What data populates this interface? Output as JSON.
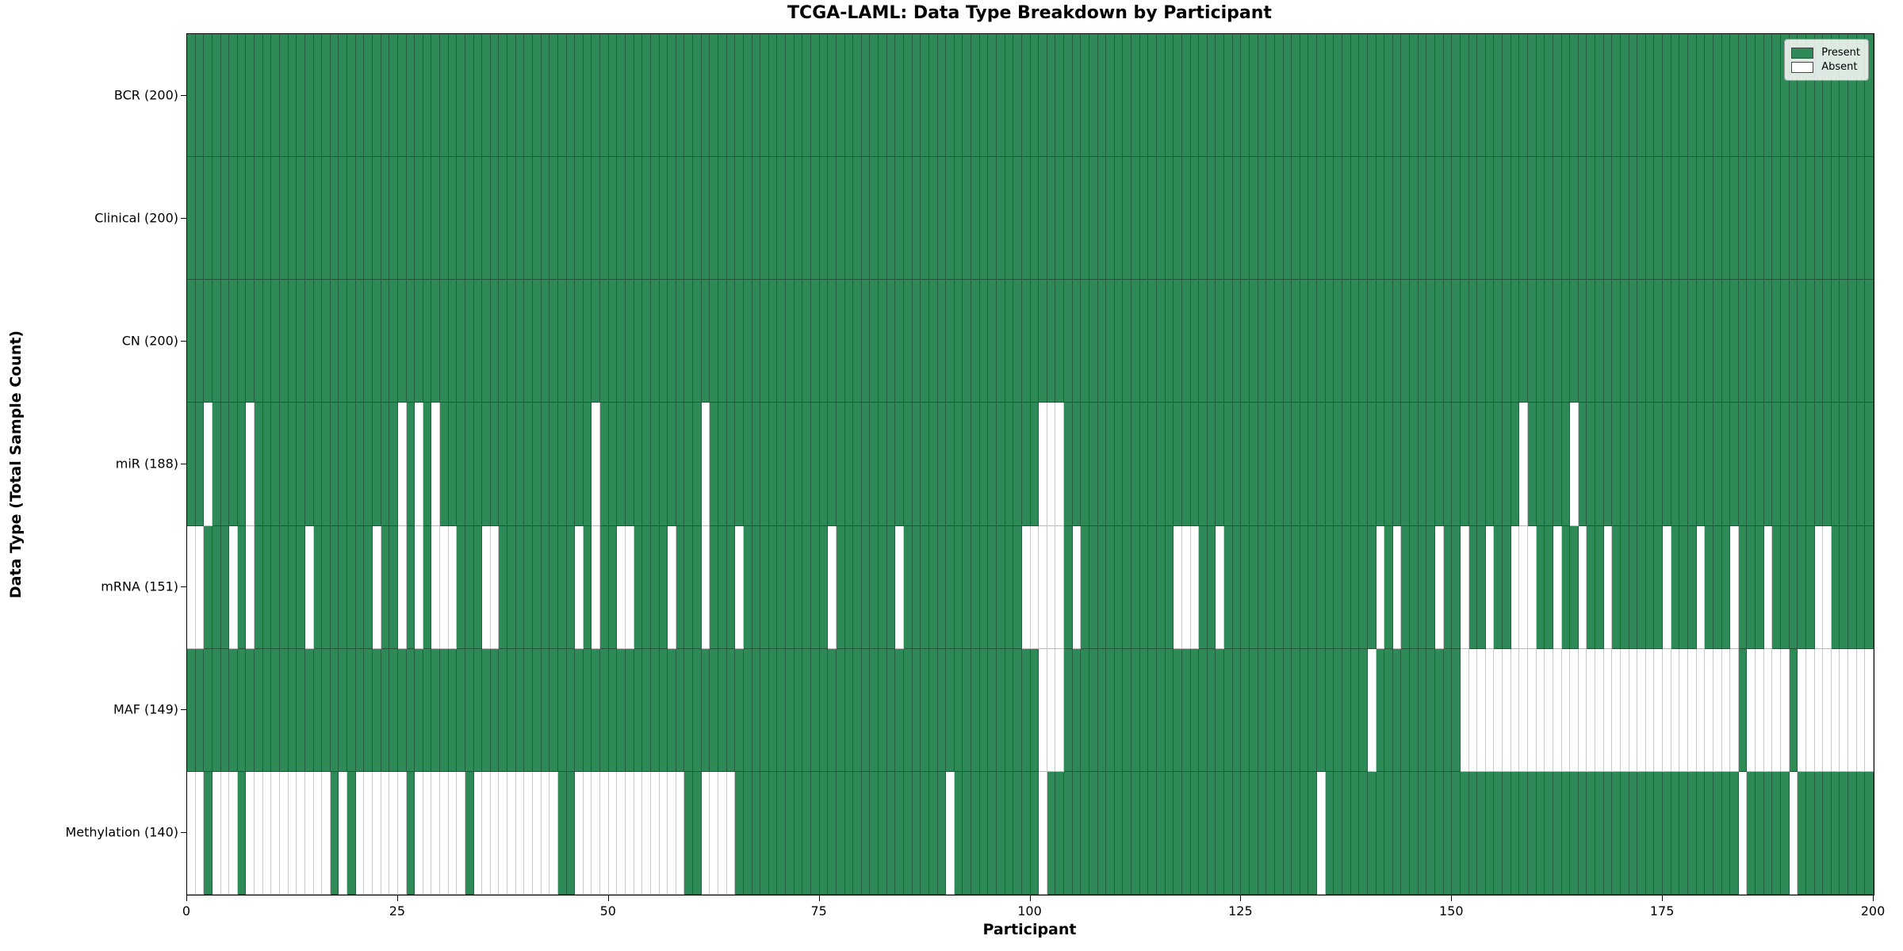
{
  "title": "TCGA-LAML: Data Type Breakdown by Participant",
  "axes": {
    "x_label": "Participant",
    "y_label": "Data Type (Total Sample Count)",
    "x_ticks": [
      0,
      25,
      50,
      75,
      100,
      125,
      150,
      175,
      200
    ]
  },
  "legend": {
    "present_label": "Present",
    "absent_label": "Absent"
  },
  "colors": {
    "present": "#2e8b57",
    "absent": "#ffffff",
    "frame": "#000000"
  },
  "chart_data": {
    "type": "heatmap",
    "title": "TCGA-LAML: Data Type Breakdown by Participant",
    "xlabel": "Participant",
    "ylabel": "Data Type (Total Sample Count)",
    "x_range": [
      0,
      200
    ],
    "n_participants": 200,
    "legend_entries": [
      "Present",
      "Absent"
    ],
    "legend_position": "upper right",
    "value_encoding": {
      "present": 1,
      "absent": 0
    },
    "rows": [
      {
        "label": "BCR (200)",
        "name": "BCR",
        "present_count": 200,
        "absent_participants": []
      },
      {
        "label": "Clinical (200)",
        "name": "Clinical",
        "present_count": 200,
        "absent_participants": []
      },
      {
        "label": "CN (200)",
        "name": "CN",
        "present_count": 200,
        "absent_participants": []
      },
      {
        "label": "miR (188)",
        "name": "miR",
        "present_count": 188,
        "absent_participants": [
          2,
          7,
          25,
          27,
          29,
          48,
          61,
          101,
          102,
          103,
          158,
          164
        ]
      },
      {
        "label": "mRNA (151)",
        "name": "mRNA",
        "present_count": 151,
        "absent_participants": [
          0,
          1,
          5,
          7,
          14,
          22,
          25,
          27,
          29,
          30,
          31,
          35,
          36,
          46,
          48,
          51,
          52,
          57,
          61,
          65,
          76,
          84,
          99,
          100,
          101,
          102,
          103,
          105,
          117,
          118,
          119,
          122,
          141,
          143,
          148,
          151,
          154,
          157,
          158,
          159,
          162,
          165,
          168,
          175,
          179,
          183,
          187,
          193,
          194
        ]
      },
      {
        "label": "MAF (149)",
        "name": "MAF",
        "present_count": 149,
        "absent_participants": [
          101,
          102,
          103,
          140,
          151,
          152,
          153,
          154,
          155,
          156,
          157,
          158,
          159,
          160,
          161,
          162,
          163,
          164,
          165,
          166,
          167,
          168,
          169,
          170,
          171,
          172,
          173,
          174,
          175,
          176,
          177,
          178,
          179,
          180,
          181,
          182,
          183,
          185,
          186,
          187,
          188,
          189,
          191,
          192,
          193,
          194,
          195,
          196,
          197,
          198,
          199
        ]
      },
      {
        "label": "Methylation (140)",
        "name": "Methylation",
        "present_count": 140,
        "absent_participants": [
          0,
          1,
          3,
          4,
          5,
          7,
          8,
          9,
          10,
          11,
          12,
          13,
          14,
          15,
          16,
          18,
          20,
          21,
          22,
          23,
          24,
          25,
          27,
          28,
          29,
          30,
          31,
          32,
          34,
          35,
          36,
          37,
          38,
          39,
          40,
          41,
          42,
          43,
          46,
          47,
          48,
          49,
          50,
          51,
          52,
          53,
          54,
          55,
          56,
          57,
          58,
          61,
          62,
          63,
          64,
          90,
          101,
          134,
          184,
          190
        ]
      }
    ]
  }
}
